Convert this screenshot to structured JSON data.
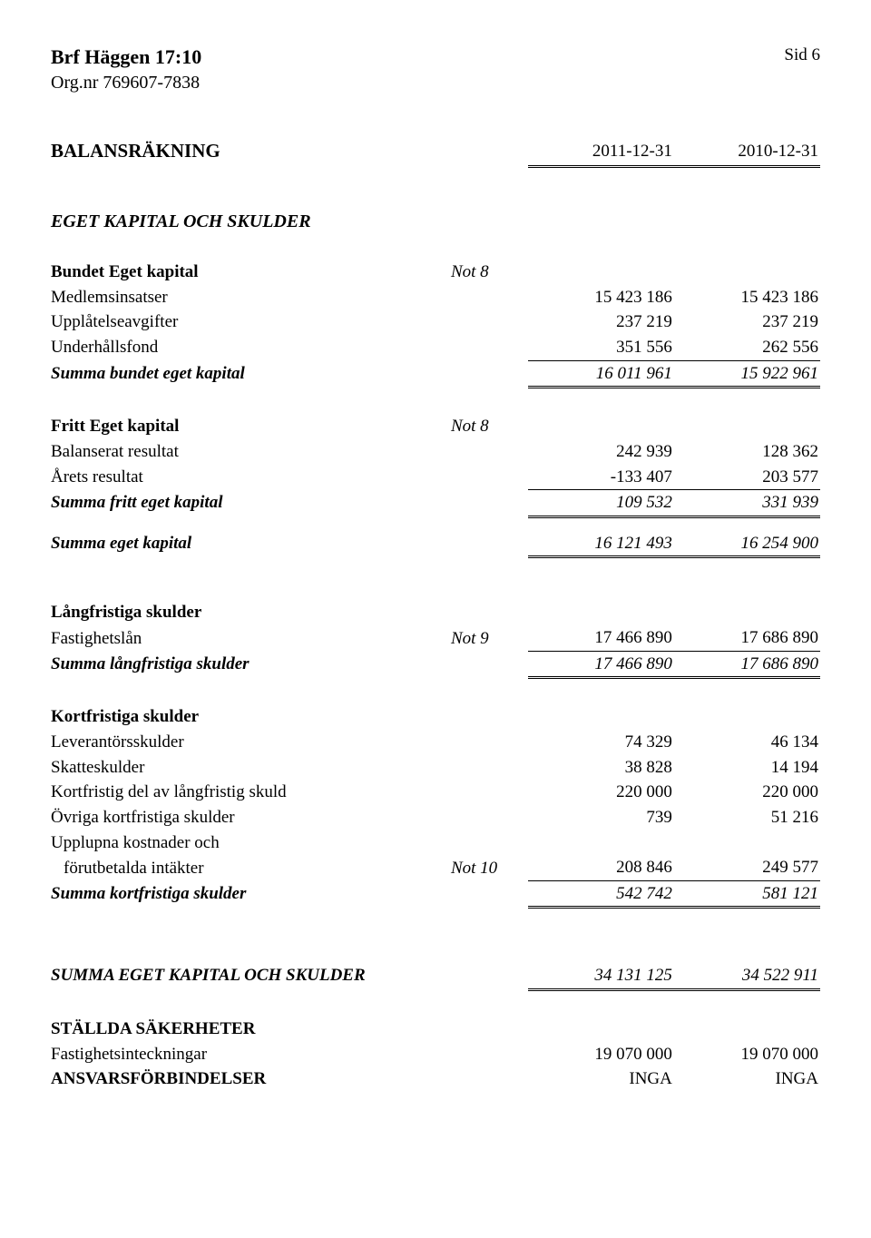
{
  "header": {
    "org_name": "Brf Häggen 17:10",
    "org_nr_label": "Org.nr 769607-7838",
    "page_label": "Sid 6"
  },
  "title": {
    "text": "BALANSRÄKNING",
    "col_a": "2011-12-31",
    "col_b": "2010-12-31"
  },
  "section_heading": "EGET KAPITAL OCH SKULDER",
  "bundet": {
    "heading": "Bundet Eget kapital",
    "note": "Not 8",
    "rows": [
      {
        "label": "Medlemsinsatser",
        "a": "15 423 186",
        "b": "15 423 186"
      },
      {
        "label": "Upplåtelseavgifter",
        "a": "237 219",
        "b": "237 219"
      },
      {
        "label": "Underhållsfond",
        "a": "351 556",
        "b": "262 556"
      }
    ],
    "sum": {
      "label": "Summa bundet eget kapital",
      "a": "16 011 961",
      "b": "15 922 961"
    }
  },
  "fritt": {
    "heading": "Fritt Eget kapital",
    "note": "Not 8",
    "rows": [
      {
        "label": "Balanserat resultat",
        "a": "242 939",
        "b": "128 362"
      },
      {
        "label": "Årets resultat",
        "a": "-133 407",
        "b": "203 577"
      }
    ],
    "sum": {
      "label": "Summa fritt eget kapital",
      "a": "109 532",
      "b": "331 939"
    }
  },
  "summa_eget": {
    "label": "Summa eget kapital",
    "a": "16 121 493",
    "b": "16 254 900"
  },
  "lang": {
    "heading": "Långfristiga skulder",
    "rows": [
      {
        "label": "Fastighetslån",
        "note": "Not 9",
        "a": "17 466 890",
        "b": "17 686 890"
      }
    ],
    "sum": {
      "label": "Summa långfristiga skulder",
      "a": "17 466 890",
      "b": "17 686 890"
    }
  },
  "kort": {
    "heading": "Kortfristiga skulder",
    "rows": [
      {
        "label": "Leverantörsskulder",
        "a": "74 329",
        "b": "46 134"
      },
      {
        "label": "Skatteskulder",
        "a": "38 828",
        "b": "14 194"
      },
      {
        "label": "Kortfristig del av långfristig skuld",
        "a": "220 000",
        "b": "220 000"
      },
      {
        "label": "Övriga kortfristiga skulder",
        "a": "739",
        "b": "51 216"
      }
    ],
    "upplupna_line1": "Upplupna kostnader och",
    "upplupna_line2": "förutbetalda intäkter",
    "upplupna_note": "Not 10",
    "upplupna_a": "208 846",
    "upplupna_b": "249 577",
    "sum": {
      "label": "Summa kortfristiga skulder",
      "a": "542 742",
      "b": "581 121"
    }
  },
  "grand_total": {
    "label": "SUMMA EGET KAPITAL OCH SKULDER",
    "a": "34 131 125",
    "b": "34 522 911"
  },
  "footer": {
    "stallda_heading": "STÄLLDA SÄKERHETER",
    "fastighet": {
      "label": "Fastighetsinteckningar",
      "a": "19 070 000",
      "b": "19 070 000"
    },
    "ansvars": {
      "label": "ANSVARSFÖRBINDELSER",
      "a": "INGA",
      "b": "INGA"
    }
  }
}
